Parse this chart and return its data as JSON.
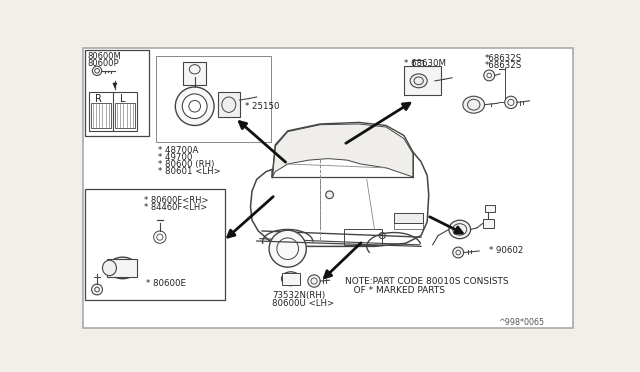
{
  "bg_color": "#f2efe9",
  "line_color": "#444444",
  "dark_color": "#222222",
  "labels": {
    "tl1": "80600M",
    "tl2": "80600P",
    "rl": [
      "R",
      "L"
    ],
    "steer1": "* 48700A",
    "steer2": "* 49700",
    "steer3": "* 80600 (RH)",
    "steer4": "* 80601 <LH>",
    "ign": "* 25150",
    "door1": "* 80600F<RH>",
    "door2": "* 84460F<LH>",
    "door3": "* 80600E",
    "tc": "* 68630M",
    "tr1": "*68632S",
    "tr2": "*68632S",
    "bc1": "73532N(RH)",
    "bc2": "80600U <LH>",
    "br": "* 90602",
    "note1": "NOTE:PART CODE 80010S CONSISTS",
    "note2": "   OF * MARKED PARTS",
    "ref": "^998*0065"
  }
}
